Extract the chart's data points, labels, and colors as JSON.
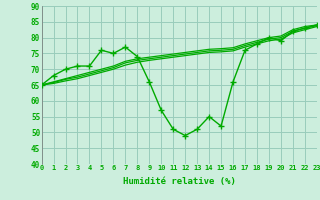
{
  "xlabel": "Humidité relative (%)",
  "ylim": [
    40,
    90
  ],
  "xlim": [
    0,
    23
  ],
  "yticks": [
    40,
    45,
    50,
    55,
    60,
    65,
    70,
    75,
    80,
    85,
    90
  ],
  "xticks": [
    0,
    1,
    2,
    3,
    4,
    5,
    6,
    7,
    8,
    9,
    10,
    11,
    12,
    13,
    14,
    15,
    16,
    17,
    18,
    19,
    20,
    21,
    22,
    23
  ],
  "bg_color": "#cceedd",
  "grid_color": "#99ccbb",
  "line_color": "#00aa00",
  "marker": "+",
  "main_line": [
    65,
    68,
    70,
    71,
    71,
    76,
    75,
    77,
    74,
    66,
    57,
    51,
    49,
    51,
    55,
    52,
    66,
    76,
    78,
    80,
    79,
    82,
    83,
    84
  ],
  "straight_lines": [
    [
      65,
      65.5,
      66.3,
      67.0,
      68.0,
      69.0,
      70.0,
      71.3,
      72.2,
      72.8,
      73.3,
      73.8,
      74.3,
      74.8,
      75.3,
      75.5,
      75.8,
      77.0,
      78.0,
      79.0,
      79.5,
      81.5,
      82.5,
      83.5
    ],
    [
      65,
      65.8,
      66.8,
      67.5,
      68.5,
      69.5,
      70.5,
      72.0,
      72.8,
      73.3,
      73.8,
      74.3,
      74.8,
      75.3,
      75.8,
      76.0,
      76.3,
      77.5,
      78.5,
      79.5,
      80.0,
      82.0,
      83.0,
      83.8
    ],
    [
      65,
      66.0,
      67.0,
      68.0,
      69.0,
      70.0,
      71.0,
      72.5,
      73.3,
      73.8,
      74.3,
      74.8,
      75.3,
      75.8,
      76.3,
      76.5,
      76.8,
      78.0,
      79.0,
      80.0,
      80.5,
      82.5,
      83.5,
      84.0
    ]
  ]
}
